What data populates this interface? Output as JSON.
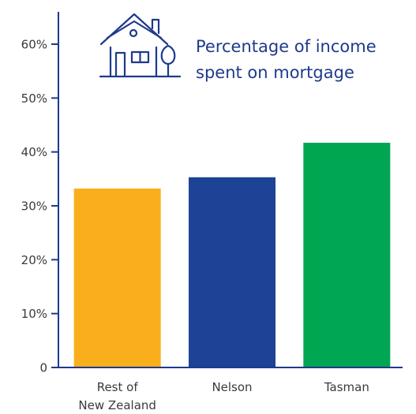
{
  "chart_data": {
    "type": "bar",
    "title_lines": [
      "Percentage of income",
      "spent on mortgage"
    ],
    "categories": [
      [
        "Rest of",
        "New Zealand"
      ],
      [
        "Nelson"
      ],
      [
        "Tasman"
      ]
    ],
    "values": [
      33.2,
      35.3,
      41.7
    ],
    "bar_colors": [
      "#f9ae1b",
      "#1e4295",
      "#00a651"
    ],
    "ylim": [
      0,
      66
    ],
    "yticks": [
      0,
      10,
      20,
      30,
      40,
      50,
      60
    ],
    "ytick_labels": [
      "0",
      "10%",
      "20%",
      "30%",
      "40%",
      "50%",
      "60%"
    ],
    "axis_color": "#1e3a8a",
    "grid": false,
    "icon": "house-icon"
  }
}
